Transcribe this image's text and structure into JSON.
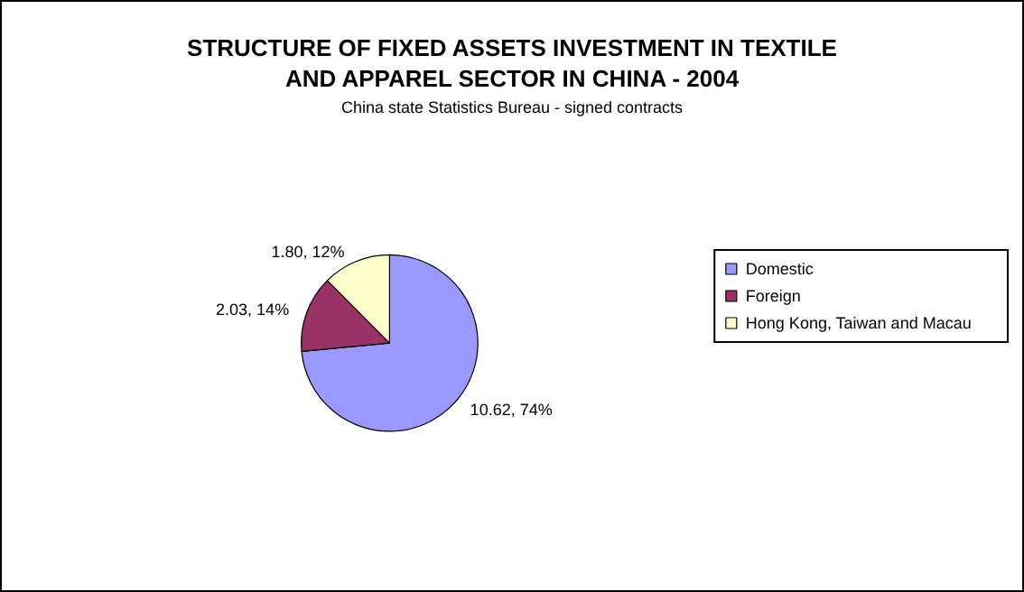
{
  "chart_data": {
    "type": "pie",
    "title": "STRUCTURE OF FIXED ASSETS INVESTMENT IN TEXTILE\nAND APPAREL SECTOR IN CHINA - 2004",
    "subtitle": "China state Statistics Bureau - signed contracts",
    "categories": [
      "Domestic",
      "Foreign",
      "Hong Kong, Taiwan and Macau"
    ],
    "values": [
      10.62,
      2.03,
      1.8
    ],
    "colors": [
      "#9999ff",
      "#993366",
      "#ffffcc"
    ],
    "value_labels": [
      "10.62, 74%",
      "2.03, 14%",
      "1.80, 12%"
    ],
    "legend": "right"
  }
}
